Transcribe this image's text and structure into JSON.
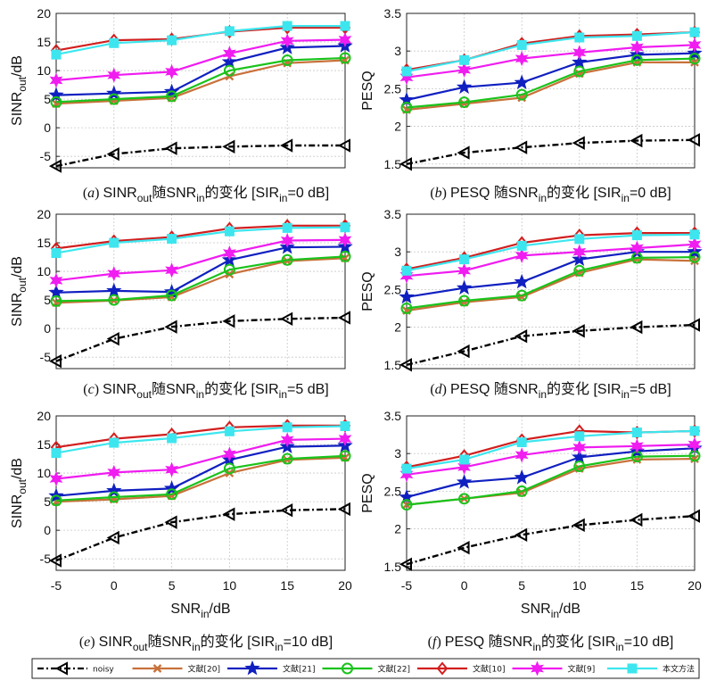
{
  "chart_data": {
    "type": "line",
    "x": [
      -5,
      0,
      5,
      10,
      15,
      20
    ],
    "xlabel_main": "SNR",
    "xlabel_sub": "in",
    "xlabel_unit": "/dB",
    "legend": {
      "placement": "bottom",
      "entries": [
        {
          "key": "noisy",
          "label": "noisy",
          "color": "#000000",
          "dash": true,
          "marker": "triangle-left"
        },
        {
          "key": "r20",
          "label": "文献[20]",
          "color": "#c8713a",
          "dash": false,
          "marker": "x"
        },
        {
          "key": "r21",
          "label": "文献[21]",
          "color": "#1020c0",
          "dash": false,
          "marker": "star"
        },
        {
          "key": "r22",
          "label": "文献[22]",
          "color": "#19c31b",
          "dash": false,
          "marker": "circle"
        },
        {
          "key": "r10",
          "label": "文献[10]",
          "color": "#d21e1e",
          "dash": false,
          "marker": "diamond"
        },
        {
          "key": "r9",
          "label": "文献[9]",
          "color": "#f01cf0",
          "dash": false,
          "marker": "star6"
        },
        {
          "key": "ours",
          "label": "本文方法",
          "color": "#3de6ee",
          "dash": false,
          "marker": "square"
        }
      ]
    },
    "panels": [
      {
        "id": "a",
        "ylabel_main": "SINR",
        "ylabel_sub": "out",
        "ylabel_unit": "/dB",
        "ylim": [
          -7,
          20
        ],
        "yticks": [
          -5,
          0,
          5,
          10,
          15,
          20
        ],
        "caption": {
          "letter": "a",
          "pre": "SINR",
          "pre_sub": "out",
          "mid": "随SNR",
          "mid_sub": "in",
          "post": "的变化 [SIR",
          "post_sub": "in",
          "end": "=0 dB]"
        },
        "series": [
          {
            "key": "noisy",
            "values": [
              -6.7,
              -4.6,
              -3.6,
              -3.3,
              -3.1,
              -3.1
            ]
          },
          {
            "key": "r20",
            "values": [
              4.2,
              4.7,
              5.2,
              9.0,
              11.3,
              11.8
            ]
          },
          {
            "key": "r21",
            "values": [
              5.7,
              6.0,
              6.3,
              11.5,
              14.0,
              14.3
            ]
          },
          {
            "key": "r22",
            "values": [
              4.5,
              5.0,
              5.5,
              10.0,
              11.8,
              12.2
            ]
          },
          {
            "key": "r10",
            "values": [
              13.5,
              15.3,
              15.5,
              16.8,
              17.5,
              17.5
            ]
          },
          {
            "key": "r9",
            "values": [
              8.3,
              9.2,
              9.8,
              13.0,
              15.2,
              15.4
            ]
          },
          {
            "key": "ours",
            "values": [
              12.8,
              14.8,
              15.3,
              16.9,
              17.8,
              17.8
            ]
          }
        ]
      },
      {
        "id": "b",
        "ylabel_main": "PESQ",
        "ylabel_sub": "",
        "ylabel_unit": "",
        "ylim": [
          1.45,
          3.5
        ],
        "yticks": [
          1.5,
          2,
          2.5,
          3,
          3.5
        ],
        "caption": {
          "letter": "b",
          "pre": "PESQ ",
          "pre_sub": "",
          "mid": "随SNR",
          "mid_sub": "in",
          "post": "的变化 [SIR",
          "post_sub": "in",
          "end": "=0 dB]"
        },
        "series": [
          {
            "key": "noisy",
            "values": [
              1.5,
              1.65,
              1.72,
              1.78,
              1.81,
              1.82
            ]
          },
          {
            "key": "r20",
            "values": [
              2.22,
              2.3,
              2.38,
              2.7,
              2.85,
              2.85
            ]
          },
          {
            "key": "r21",
            "values": [
              2.35,
              2.52,
              2.58,
              2.85,
              2.95,
              2.97
            ]
          },
          {
            "key": "r22",
            "values": [
              2.25,
              2.32,
              2.42,
              2.73,
              2.88,
              2.9
            ]
          },
          {
            "key": "r10",
            "values": [
              2.75,
              2.88,
              3.1,
              3.2,
              3.22,
              3.25
            ]
          },
          {
            "key": "r9",
            "values": [
              2.65,
              2.75,
              2.9,
              2.98,
              3.05,
              3.08
            ]
          },
          {
            "key": "ours",
            "values": [
              2.73,
              2.88,
              3.08,
              3.18,
              3.2,
              3.25
            ]
          }
        ]
      },
      {
        "id": "c",
        "ylabel_main": "SINR",
        "ylabel_sub": "out",
        "ylabel_unit": "/dB",
        "ylim": [
          -7,
          20
        ],
        "yticks": [
          -5,
          0,
          5,
          10,
          15,
          20
        ],
        "caption": {
          "letter": "c",
          "pre": "SINR",
          "pre_sub": "out",
          "mid": "随SNR",
          "mid_sub": "in",
          "post": "的变化 [SIR",
          "post_sub": "in",
          "end": "=5 dB]"
        },
        "series": [
          {
            "key": "noisy",
            "values": [
              -5.7,
              -1.8,
              0.3,
              1.3,
              1.7,
              1.9
            ]
          },
          {
            "key": "r20",
            "values": [
              4.5,
              4.9,
              5.5,
              9.5,
              11.8,
              12.3
            ]
          },
          {
            "key": "r21",
            "values": [
              6.3,
              6.6,
              6.4,
              12.0,
              14.2,
              14.3
            ]
          },
          {
            "key": "r22",
            "values": [
              4.8,
              5.0,
              5.8,
              10.3,
              12.0,
              12.6
            ]
          },
          {
            "key": "r10",
            "values": [
              14.0,
              15.3,
              16.0,
              17.5,
              18.0,
              18.0
            ]
          },
          {
            "key": "r9",
            "values": [
              8.4,
              9.6,
              10.2,
              13.2,
              15.4,
              15.5
            ]
          },
          {
            "key": "ours",
            "values": [
              13.2,
              15.0,
              15.7,
              17.0,
              17.6,
              17.7
            ]
          }
        ]
      },
      {
        "id": "d",
        "ylabel_main": "PESQ",
        "ylabel_sub": "",
        "ylabel_unit": "",
        "ylim": [
          1.45,
          3.5
        ],
        "yticks": [
          1.5,
          2,
          2.5,
          3,
          3.5
        ],
        "caption": {
          "letter": "d",
          "pre": "PESQ ",
          "pre_sub": "",
          "mid": "随SNR",
          "mid_sub": "in",
          "post": "的变化 [SIR",
          "post_sub": "in",
          "end": "=5 dB]"
        },
        "series": [
          {
            "key": "noisy",
            "values": [
              1.5,
              1.68,
              1.88,
              1.95,
              2.0,
              2.03
            ]
          },
          {
            "key": "r20",
            "values": [
              2.22,
              2.33,
              2.4,
              2.72,
              2.9,
              2.88
            ]
          },
          {
            "key": "r21",
            "values": [
              2.4,
              2.52,
              2.6,
              2.9,
              3.0,
              3.0
            ]
          },
          {
            "key": "r22",
            "values": [
              2.25,
              2.35,
              2.42,
              2.75,
              2.92,
              2.93
            ]
          },
          {
            "key": "r10",
            "values": [
              2.77,
              2.92,
              3.12,
              3.22,
              3.25,
              3.25
            ]
          },
          {
            "key": "r9",
            "values": [
              2.68,
              2.75,
              2.95,
              3.0,
              3.05,
              3.1
            ]
          },
          {
            "key": "ours",
            "values": [
              2.75,
              2.9,
              3.08,
              3.17,
              3.22,
              3.23
            ]
          }
        ]
      },
      {
        "id": "e",
        "ylabel_main": "SINR",
        "ylabel_sub": "out",
        "ylabel_unit": "/dB",
        "ylim": [
          -7,
          20
        ],
        "yticks": [
          -5,
          0,
          5,
          10,
          15,
          20
        ],
        "caption": {
          "letter": "e",
          "pre": "SINR",
          "pre_sub": "out",
          "mid": "随SNR",
          "mid_sub": "in",
          "post": "的变化 [SIR",
          "post_sub": "in",
          "end": "=10 dB]"
        },
        "series": [
          {
            "key": "noisy",
            "values": [
              -5.3,
              -1.3,
              1.4,
              2.8,
              3.5,
              3.7
            ]
          },
          {
            "key": "r20",
            "values": [
              5.0,
              5.4,
              6.0,
              10.0,
              12.3,
              12.7
            ]
          },
          {
            "key": "r21",
            "values": [
              6.0,
              6.9,
              7.3,
              12.3,
              14.6,
              14.8
            ]
          },
          {
            "key": "r22",
            "values": [
              5.2,
              5.8,
              6.3,
              10.8,
              12.5,
              13.0
            ]
          },
          {
            "key": "r10",
            "values": [
              14.5,
              16.0,
              16.8,
              18.0,
              18.3,
              18.3
            ]
          },
          {
            "key": "r9",
            "values": [
              9.0,
              10.1,
              10.6,
              13.3,
              15.8,
              16.0
            ]
          },
          {
            "key": "ours",
            "values": [
              13.5,
              15.3,
              16.1,
              17.3,
              18.0,
              18.2
            ]
          }
        ]
      },
      {
        "id": "f",
        "ylabel_main": "PESQ",
        "ylabel_sub": "",
        "ylabel_unit": "",
        "ylim": [
          1.45,
          3.5
        ],
        "yticks": [
          1.5,
          2,
          2.5,
          3,
          3.5
        ],
        "caption": {
          "letter": "f",
          "pre": "PESQ ",
          "pre_sub": "",
          "mid": "随SNR",
          "mid_sub": "in",
          "post": "的变化 [SIR",
          "post_sub": "in",
          "end": "=10 dB]"
        },
        "series": [
          {
            "key": "noisy",
            "values": [
              1.53,
              1.75,
              1.92,
              2.05,
              2.12,
              2.17
            ]
          },
          {
            "key": "r20",
            "values": [
              2.32,
              2.4,
              2.48,
              2.8,
              2.92,
              2.93
            ]
          },
          {
            "key": "r21",
            "values": [
              2.42,
              2.62,
              2.68,
              2.95,
              3.03,
              3.07
            ]
          },
          {
            "key": "r22",
            "values": [
              2.32,
              2.4,
              2.5,
              2.83,
              2.96,
              2.97
            ]
          },
          {
            "key": "r10",
            "values": [
              2.82,
              2.97,
              3.18,
              3.3,
              3.28,
              3.3
            ]
          },
          {
            "key": "r9",
            "values": [
              2.72,
              2.82,
              2.98,
              3.08,
              3.1,
              3.12
            ]
          },
          {
            "key": "ours",
            "values": [
              2.8,
              2.92,
              3.15,
              3.23,
              3.28,
              3.3
            ]
          }
        ]
      }
    ]
  }
}
